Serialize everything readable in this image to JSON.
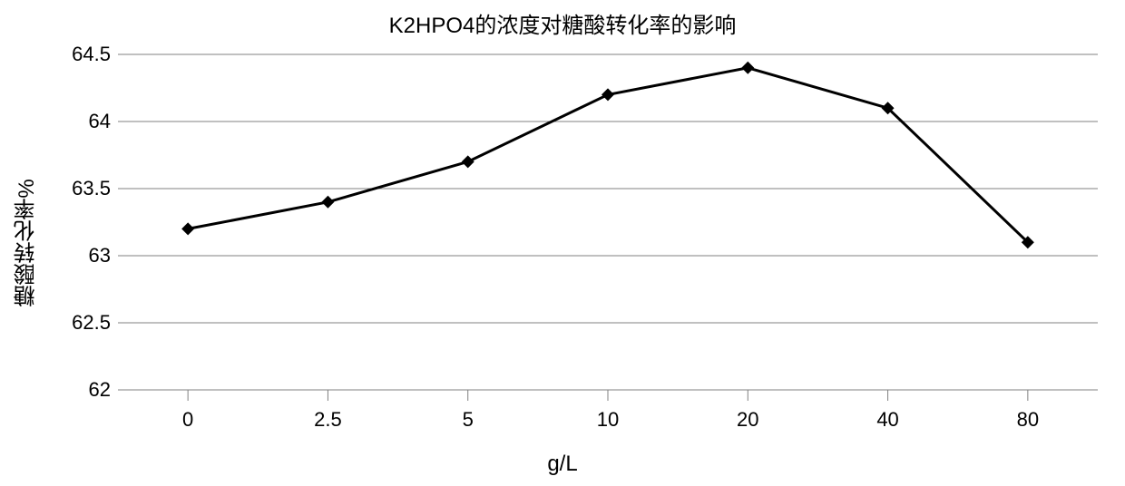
{
  "chart": {
    "type": "line",
    "title": "K2HPO4的浓度对糖酸转化率的影响",
    "title_fontsize": 24,
    "x_axis_label": "g/L",
    "y_axis_label": "糖酸转化率%",
    "label_fontsize": 24,
    "tick_fontsize": 22,
    "background_color": "#ffffff",
    "grid_color": "#808080",
    "line_color": "#000000",
    "marker_color": "#000000",
    "marker_style": "diamond",
    "marker_size": 7,
    "line_width": 3,
    "categories": [
      "0",
      "2.5",
      "5",
      "10",
      "20",
      "40",
      "80"
    ],
    "values": [
      63.2,
      63.4,
      63.7,
      64.2,
      64.4,
      64.1,
      63.1
    ],
    "ylim": [
      62,
      64.5
    ],
    "ytick_step": 0.5,
    "yticks": [
      "62",
      "62.5",
      "63",
      "63.5",
      "64",
      "64.5"
    ],
    "x_tick_length": 12,
    "grid_on": true
  }
}
